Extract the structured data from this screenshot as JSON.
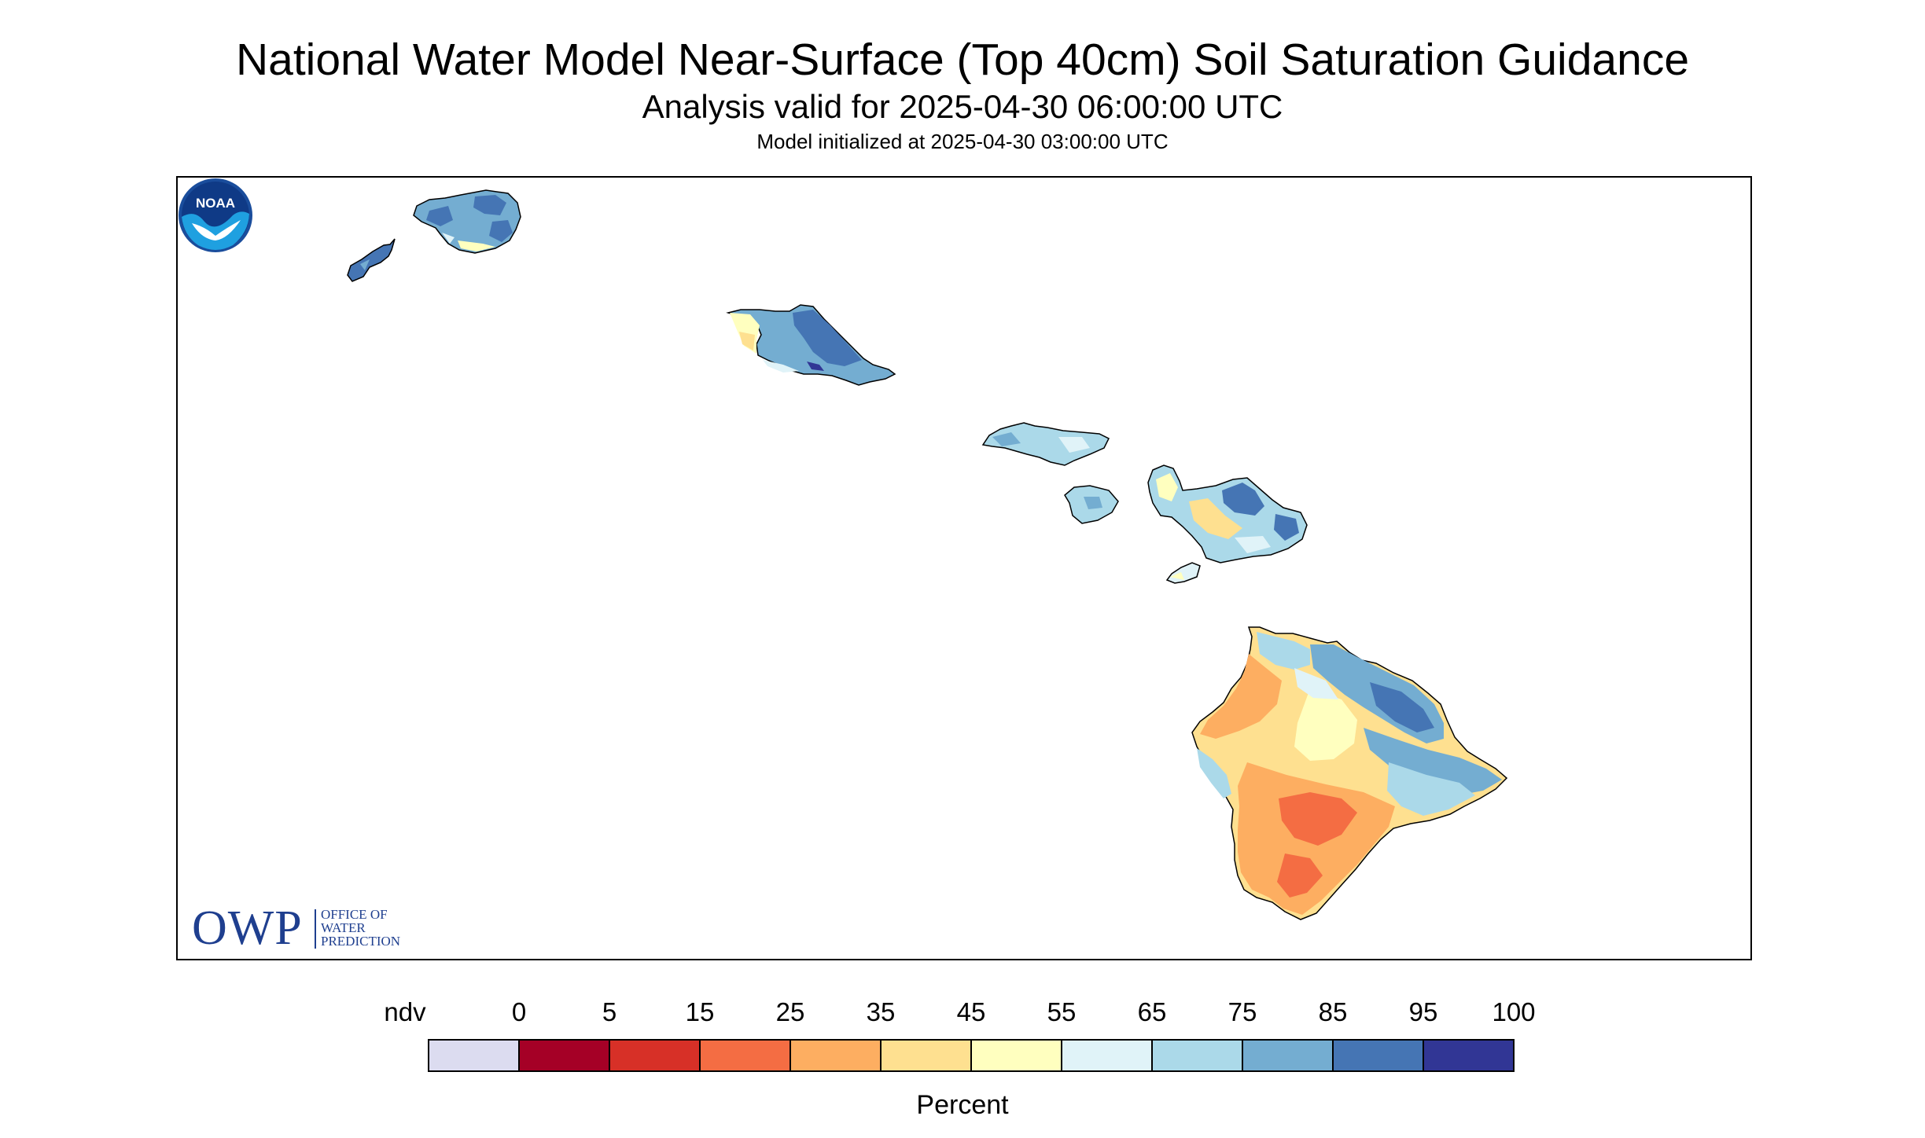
{
  "title": "National Water Model Near-Surface (Top 40cm) Soil Saturation Guidance",
  "subtitle": "Analysis valid for 2025-04-30 06:00:00 UTC",
  "init_text": "Model initialized at 2025-04-30 03:00:00 UTC",
  "logos": {
    "owp_big": "OWP",
    "owp_small": [
      "OFFICE OF",
      "WATER",
      "PREDICTION"
    ],
    "noaa": "NOAA"
  },
  "legend": {
    "title": "Percent",
    "labels": [
      "ndv",
      "0",
      "5",
      "15",
      "25",
      "35",
      "45",
      "55",
      "65",
      "75",
      "85",
      "95",
      "100"
    ],
    "colors": [
      "#dcdcf0",
      "#a50026",
      "#d73027",
      "#f46d43",
      "#fdae61",
      "#fee090",
      "#ffffbf",
      "#e0f3f8",
      "#abd9e9",
      "#74add1",
      "#4575b4",
      "#313695"
    ]
  },
  "map": {
    "islands": [
      {
        "name": "Niihau",
        "fill": "#4575b4"
      },
      {
        "name": "Kauai",
        "fill": "#74add1"
      },
      {
        "name": "Oahu",
        "fill": "#74add1"
      },
      {
        "name": "Molokai",
        "fill": "#abd9e9"
      },
      {
        "name": "Lanai",
        "fill": "#abd9e9"
      },
      {
        "name": "Maui",
        "fill": "#abd9e9"
      },
      {
        "name": "Kahoolawe",
        "fill": "#e0f3f8"
      },
      {
        "name": "Hawaii",
        "fill": "#fee090"
      }
    ]
  }
}
